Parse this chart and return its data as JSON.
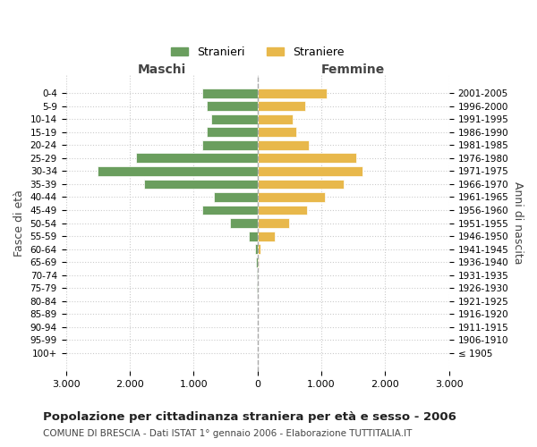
{
  "age_groups": [
    "100+",
    "95-99",
    "90-94",
    "85-89",
    "80-84",
    "75-79",
    "70-74",
    "65-69",
    "60-64",
    "55-59",
    "50-54",
    "45-49",
    "40-44",
    "35-39",
    "30-34",
    "25-29",
    "20-24",
    "15-19",
    "10-14",
    "5-9",
    "0-4"
  ],
  "birth_years": [
    "≤ 1905",
    "1906-1910",
    "1911-1915",
    "1916-1920",
    "1921-1925",
    "1926-1930",
    "1931-1935",
    "1936-1940",
    "1941-1945",
    "1946-1950",
    "1951-1955",
    "1956-1960",
    "1961-1965",
    "1966-1970",
    "1971-1975",
    "1976-1980",
    "1981-1985",
    "1986-1990",
    "1991-1995",
    "1996-2000",
    "2001-2005"
  ],
  "males": [
    0,
    0,
    0,
    0,
    0,
    5,
    10,
    20,
    40,
    130,
    430,
    870,
    680,
    1780,
    2500,
    1900,
    870,
    800,
    730,
    800,
    870
  ],
  "females": [
    0,
    0,
    0,
    0,
    0,
    5,
    10,
    20,
    50,
    270,
    500,
    780,
    1050,
    1350,
    1650,
    1550,
    800,
    600,
    550,
    750,
    1080
  ],
  "male_color": "#6a9e5e",
  "female_color": "#e8b84b",
  "background_color": "#ffffff",
  "grid_color": "#cccccc",
  "xlim": 3000,
  "title": "Popolazione per cittadinanza straniera per età e sesso - 2006",
  "subtitle": "COMUNE DI BRESCIA - Dati ISTAT 1° gennaio 2006 - Elaborazione TUTTITALIA.IT",
  "xlabel_left": "Maschi",
  "xlabel_right": "Femmine",
  "ylabel_left": "Fasce di età",
  "ylabel_right": "Anni di nascita",
  "legend_male": "Stranieri",
  "legend_female": "Straniere",
  "xticks": [
    -3000,
    -2000,
    -1000,
    0,
    1000,
    2000,
    3000
  ],
  "xtick_labels": [
    "3.000",
    "2.000",
    "1.000",
    "0",
    "1.000",
    "2.000",
    "3.000"
  ]
}
